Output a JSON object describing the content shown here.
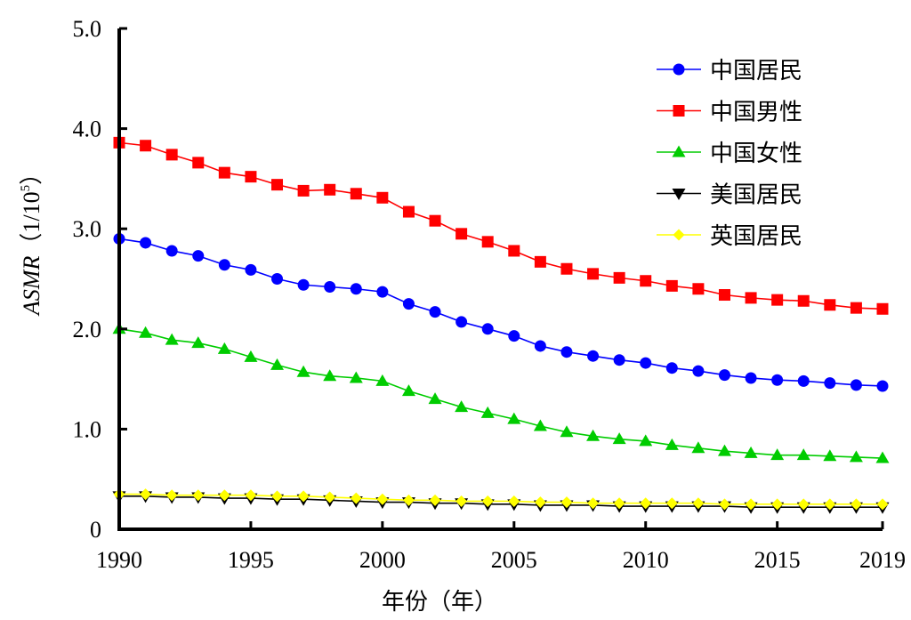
{
  "chart_data": {
    "type": "line",
    "title": "",
    "xlabel": "年份（年）",
    "ylabel": "ASMR（1/10⁵）",
    "ylabel_main": "ASMR",
    "ylabel_paren_open": "（",
    "ylabel_unit": "1/10",
    "ylabel_exp": "5",
    "ylabel_paren_close": "）",
    "xlim": [
      1990,
      2019
    ],
    "ylim": [
      0,
      5
    ],
    "x_ticks": [
      1990,
      1995,
      2000,
      2005,
      2010,
      2015,
      2019
    ],
    "x_tick_labels": [
      "1990",
      "1995",
      "2000",
      "2005",
      "2010",
      "2015",
      "2019"
    ],
    "y_ticks": [
      0,
      1,
      2,
      3,
      4,
      5
    ],
    "y_tick_labels": [
      "0",
      "1.0",
      "2.0",
      "3.0",
      "4.0",
      "5.0"
    ],
    "grid": false,
    "legend_position": "top-right",
    "x": [
      1990,
      1991,
      1992,
      1993,
      1994,
      1995,
      1996,
      1997,
      1998,
      1999,
      2000,
      2001,
      2002,
      2003,
      2004,
      2005,
      2006,
      2007,
      2008,
      2009,
      2010,
      2011,
      2012,
      2013,
      2014,
      2015,
      2016,
      2017,
      2018,
      2019
    ],
    "series": [
      {
        "name": "中国居民",
        "color": "#0000ff",
        "marker": "circle",
        "values": [
          2.9,
          2.86,
          2.78,
          2.73,
          2.64,
          2.59,
          2.5,
          2.44,
          2.42,
          2.4,
          2.37,
          2.25,
          2.17,
          2.07,
          2.0,
          1.93,
          1.83,
          1.77,
          1.73,
          1.69,
          1.66,
          1.61,
          1.58,
          1.54,
          1.51,
          1.49,
          1.48,
          1.46,
          1.44,
          1.43
        ]
      },
      {
        "name": "中国男性",
        "color": "#ff0000",
        "marker": "square",
        "values": [
          3.86,
          3.83,
          3.74,
          3.66,
          3.56,
          3.52,
          3.44,
          3.38,
          3.39,
          3.35,
          3.31,
          3.17,
          3.08,
          2.95,
          2.87,
          2.78,
          2.67,
          2.6,
          2.55,
          2.51,
          2.48,
          2.43,
          2.4,
          2.34,
          2.31,
          2.29,
          2.28,
          2.24,
          2.21,
          2.2
        ]
      },
      {
        "name": "中国女性",
        "color": "#00cc00",
        "marker": "triangle-up",
        "values": [
          2.0,
          1.96,
          1.89,
          1.86,
          1.8,
          1.72,
          1.64,
          1.57,
          1.53,
          1.51,
          1.48,
          1.38,
          1.3,
          1.22,
          1.16,
          1.1,
          1.03,
          0.97,
          0.93,
          0.9,
          0.88,
          0.84,
          0.81,
          0.78,
          0.76,
          0.74,
          0.74,
          0.73,
          0.72,
          0.71
        ]
      },
      {
        "name": "美国居民",
        "color": "#000000",
        "marker": "triangle-down",
        "values": [
          0.33,
          0.33,
          0.32,
          0.32,
          0.31,
          0.31,
          0.3,
          0.3,
          0.29,
          0.28,
          0.27,
          0.27,
          0.26,
          0.26,
          0.25,
          0.25,
          0.24,
          0.24,
          0.24,
          0.23,
          0.23,
          0.23,
          0.23,
          0.23,
          0.22,
          0.22,
          0.22,
          0.22,
          0.22,
          0.22
        ]
      },
      {
        "name": "英国居民",
        "color": "#ffff00",
        "marker": "diamond",
        "values": [
          0.35,
          0.35,
          0.34,
          0.34,
          0.34,
          0.34,
          0.33,
          0.33,
          0.32,
          0.31,
          0.3,
          0.29,
          0.29,
          0.28,
          0.28,
          0.28,
          0.27,
          0.27,
          0.26,
          0.26,
          0.26,
          0.26,
          0.26,
          0.25,
          0.25,
          0.25,
          0.25,
          0.25,
          0.25,
          0.25
        ]
      }
    ]
  }
}
